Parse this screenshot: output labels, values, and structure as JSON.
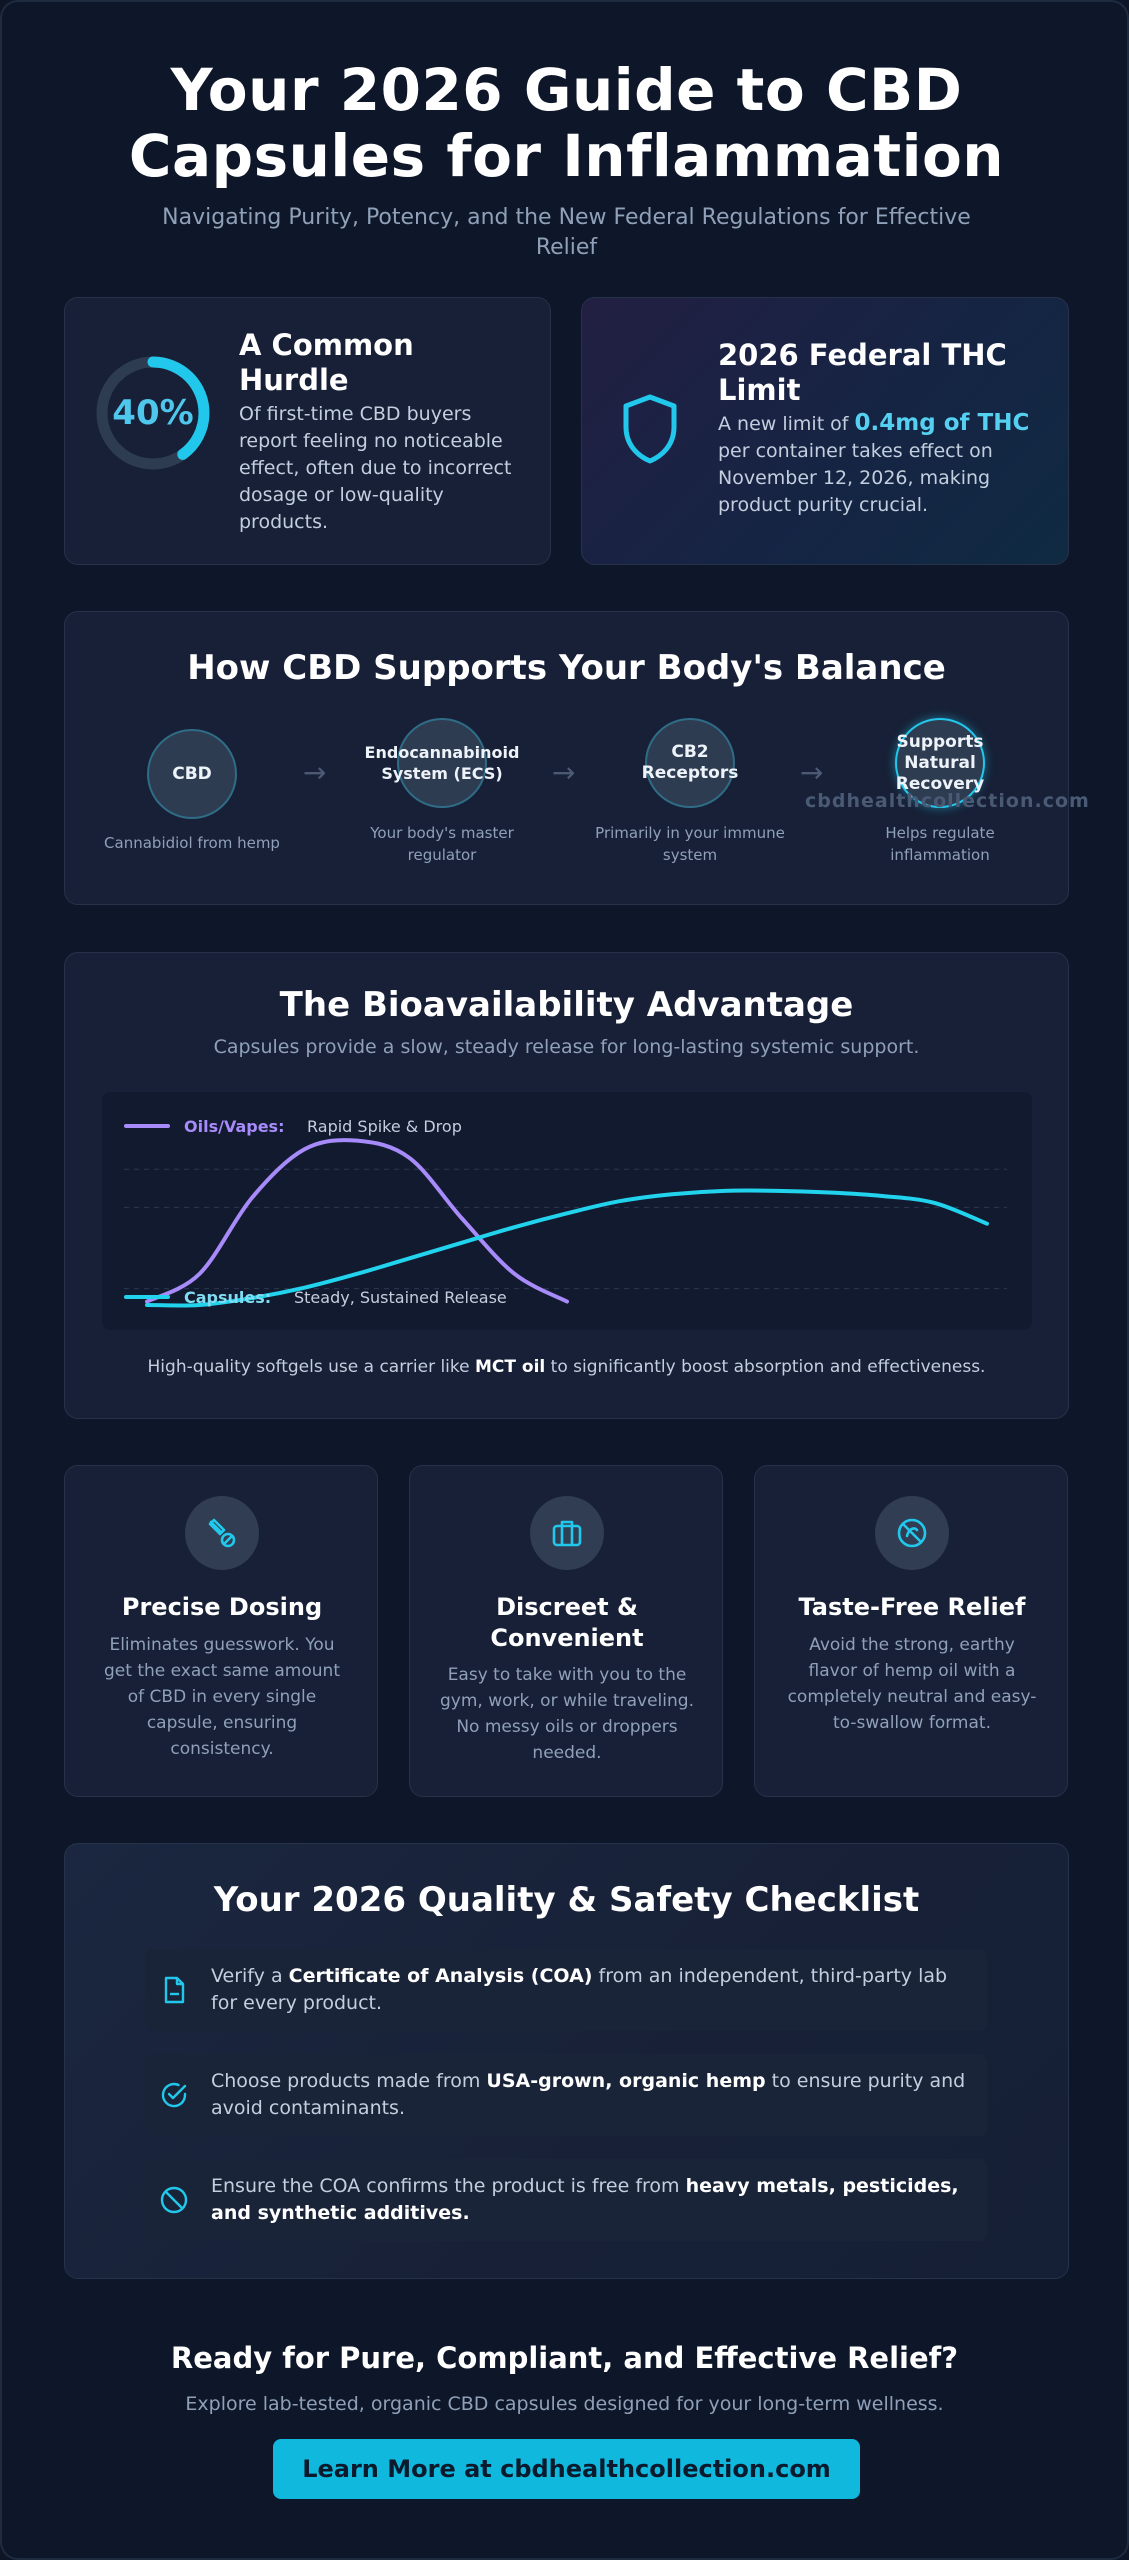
{
  "header": {
    "title_line1": "Your 2026 Guide to CBD",
    "title_line2": "Capsules for Inflammation",
    "subtitle": "Navigating Purity, Potency, and the New Federal Regulations for Effective Relief"
  },
  "stats": {
    "hurdle": {
      "percent": "40%",
      "percent_value": 0.4,
      "title": "A Common Hurdle",
      "body": "Of first-time CBD buyers report feeling no noticeable effect, often due to incorrect dosage or low-quality products."
    },
    "thc_limit": {
      "icon": "shield-icon",
      "title": "2026 Federal THC Limit",
      "body_before": "A new limit of ",
      "highlight": "0.4mg of THC",
      "body_after": " per container takes effect on November 12, 2026, making product purity crucial."
    }
  },
  "ecs": {
    "title": "How CBD Supports Your Body's Balance",
    "nodes": [
      {
        "label": "CBD",
        "caption": "Cannabidiol from hemp"
      },
      {
        "label": "Endocannabinoid System (ECS)",
        "caption": "Your body's master regulator"
      },
      {
        "label": "CB2 Receptors",
        "caption": "Primarily in your immune system"
      },
      {
        "label": "Supports Natural Recovery",
        "caption": "Helps regulate inflammation"
      }
    ],
    "watermark": "cbdhealthcollection.com"
  },
  "bioavailability": {
    "title": "The Bioavailability Advantage",
    "subtitle": "Capsules provide a slow, steady release for long-lasting systemic support.",
    "note_before": "High-quality softgels use a carrier like ",
    "note_bold": "MCT oil",
    "note_after": " to significantly boost absorption and effectiveness.",
    "legend": {
      "oils_name": "Oils/Vapes:",
      "oils_desc": "Rapid Spike & Drop",
      "caps_name": "Capsules:",
      "caps_desc": "Steady, Sustained Release"
    },
    "colors": {
      "oils": "#a78bfa",
      "capsules": "#22d3ee"
    }
  },
  "chart_data": {
    "type": "line",
    "title": "",
    "xlabel": "",
    "ylabel": "",
    "grid": true,
    "legend_placement": "inside",
    "x": [
      0,
      1,
      2,
      3,
      4,
      5,
      6,
      7,
      8,
      9,
      10,
      11,
      12,
      13,
      14,
      15,
      16
    ],
    "series": [
      {
        "name": "Oils/Vapes: Rapid Spike & Drop",
        "color": "#a78bfa",
        "values": [
          0.02,
          0.18,
          0.62,
          0.9,
          0.95,
          0.85,
          0.5,
          0.18,
          0.02,
          null,
          null,
          null,
          null,
          null,
          null,
          null,
          null
        ]
      },
      {
        "name": "Capsules: Steady, Sustained Release",
        "color": "#22d3ee",
        "values": [
          0.0,
          0.0,
          0.04,
          0.1,
          0.18,
          0.27,
          0.36,
          0.45,
          0.53,
          0.6,
          0.64,
          0.66,
          0.66,
          0.65,
          0.63,
          0.59,
          0.47
        ]
      }
    ],
    "ylim": [
      0,
      1
    ]
  },
  "features": [
    {
      "icon": "pill-icon",
      "title": "Precise Dosing",
      "body": "Eliminates guesswork. You get the exact same amount of CBD in every single capsule, ensuring consistency."
    },
    {
      "icon": "briefcase-icon",
      "title": "Discreet & Convenient",
      "body": "Easy to take with you to the gym, work, or while traveling. No messy oils or droppers needed."
    },
    {
      "icon": "no-taste-icon",
      "title": "Taste-Free Relief",
      "body": "Avoid the strong, earthy flavor of hemp oil with a completely neutral and easy-to-swallow format."
    }
  ],
  "checklist": {
    "title": "Your 2026 Quality & Safety Checklist",
    "items": [
      {
        "icon": "document-icon",
        "before": "Verify a ",
        "bold": "Certificate of Analysis (COA)",
        "after": " from an independent, third-party lab for every product."
      },
      {
        "icon": "check-circle-icon",
        "before": "Choose products made from ",
        "bold": "USA-grown, organic hemp",
        "after": " to ensure purity and avoid contaminants."
      },
      {
        "icon": "ban-icon",
        "before": "Ensure the COA confirms the product is free from ",
        "bold": "heavy metals, pesticides, and synthetic additives.",
        "after": ""
      }
    ]
  },
  "cta": {
    "title": "Ready for Pure, Compliant, and Effective Relief?",
    "subtitle": "Explore lab-tested, organic CBD capsules designed for your long-term wellness.",
    "button_label": "Learn More at cbdhealthcollection.com"
  }
}
